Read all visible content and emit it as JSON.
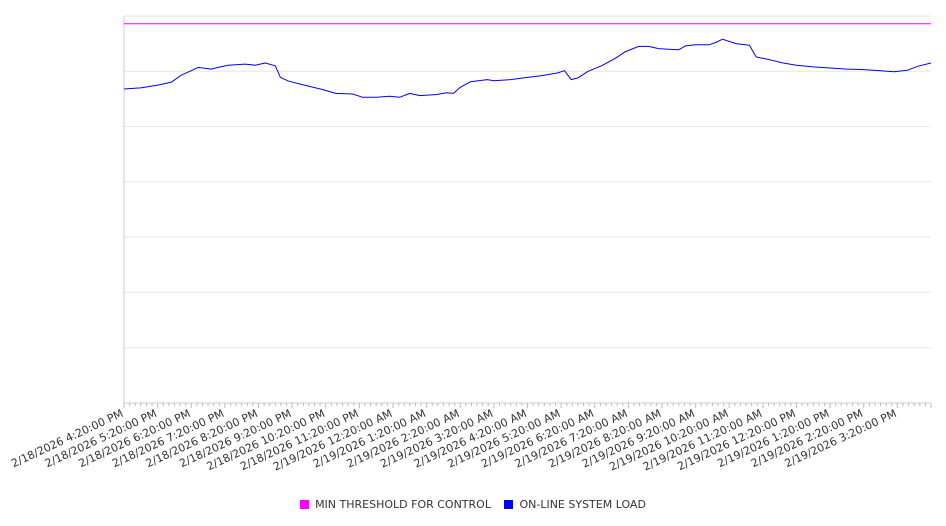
{
  "chart_data": {
    "type": "line",
    "title": "",
    "xlabel": "",
    "ylabel": "",
    "grid": true,
    "legend_position": "bottom-center",
    "ylim": [
      0,
      7
    ],
    "x_labels": [
      "2/18/2026 4:20:00 PM",
      "2/18/2026 5:20:00 PM",
      "2/18/2026 6:20:00 PM",
      "2/18/2026 7:20:00 PM",
      "2/18/2026 8:20:00 PM",
      "2/18/2026 9:20:00 PM",
      "2/18/2026 10:20:00 PM",
      "2/18/2026 11:20:00 PM",
      "2/19/2026 12:20:00 AM",
      "2/19/2026 1:20:00 AM",
      "2/19/2026 2:20:00 AM",
      "2/19/2026 3:20:00 AM",
      "2/19/2026 4:20:00 AM",
      "2/19/2026 5:20:00 AM",
      "2/19/2026 6:20:00 AM",
      "2/19/2026 7:20:00 AM",
      "2/19/2026 8:20:00 AM",
      "2/19/2026 9:20:00 AM",
      "2/19/2026 10:20:00 AM",
      "2/19/2026 11:20:00 AM",
      "2/19/2026 12:20:00 PM",
      "2/19/2026 1:20:00 PM",
      "2/19/2026 2:20:00 PM",
      "2/19/2026 3:20:00 PM"
    ],
    "x_hours": [
      0,
      24
    ],
    "series": [
      {
        "name": "MIN THRESHOLD FOR CONTROL",
        "color": "#ff00ff",
        "points": [
          [
            0,
            6.86
          ],
          [
            24,
            6.86
          ]
        ]
      },
      {
        "name": "ON-LINE SYSTEM LOAD",
        "color": "#0000ff",
        "points": [
          [
            0.0,
            5.68
          ],
          [
            0.5,
            5.7
          ],
          [
            1.0,
            5.75
          ],
          [
            1.4,
            5.8
          ],
          [
            1.7,
            5.93
          ],
          [
            2.0,
            6.01
          ],
          [
            2.2,
            6.07
          ],
          [
            2.6,
            6.04
          ],
          [
            2.8,
            6.07
          ],
          [
            3.1,
            6.11
          ],
          [
            3.6,
            6.13
          ],
          [
            3.9,
            6.11
          ],
          [
            4.2,
            6.15
          ],
          [
            4.5,
            6.1
          ],
          [
            4.65,
            5.89
          ],
          [
            4.9,
            5.82
          ],
          [
            5.3,
            5.76
          ],
          [
            5.9,
            5.67
          ],
          [
            6.3,
            5.6
          ],
          [
            6.8,
            5.59
          ],
          [
            7.1,
            5.53
          ],
          [
            7.5,
            5.53
          ],
          [
            7.9,
            5.55
          ],
          [
            8.2,
            5.53
          ],
          [
            8.5,
            5.6
          ],
          [
            8.8,
            5.56
          ],
          [
            9.3,
            5.58
          ],
          [
            9.6,
            5.61
          ],
          [
            9.8,
            5.6
          ],
          [
            10.0,
            5.71
          ],
          [
            10.3,
            5.81
          ],
          [
            10.8,
            5.85
          ],
          [
            11.0,
            5.83
          ],
          [
            11.5,
            5.85
          ],
          [
            12.0,
            5.89
          ],
          [
            12.4,
            5.92
          ],
          [
            12.9,
            5.97
          ],
          [
            13.1,
            6.01
          ],
          [
            13.3,
            5.85
          ],
          [
            13.5,
            5.88
          ],
          [
            13.8,
            6.0
          ],
          [
            14.2,
            6.1
          ],
          [
            14.6,
            6.23
          ],
          [
            14.9,
            6.35
          ],
          [
            15.3,
            6.45
          ],
          [
            15.6,
            6.45
          ],
          [
            15.9,
            6.41
          ],
          [
            16.2,
            6.4
          ],
          [
            16.5,
            6.39
          ],
          [
            16.7,
            6.46
          ],
          [
            17.0,
            6.48
          ],
          [
            17.4,
            6.48
          ],
          [
            17.6,
            6.52
          ],
          [
            17.8,
            6.58
          ],
          [
            18.2,
            6.5
          ],
          [
            18.6,
            6.47
          ],
          [
            18.8,
            6.26
          ],
          [
            19.2,
            6.21
          ],
          [
            19.6,
            6.15
          ],
          [
            20.0,
            6.11
          ],
          [
            20.5,
            6.08
          ],
          [
            21.0,
            6.06
          ],
          [
            21.5,
            6.04
          ],
          [
            22.0,
            6.03
          ],
          [
            22.5,
            6.01
          ],
          [
            22.9,
            5.99
          ],
          [
            23.3,
            6.02
          ],
          [
            23.6,
            6.09
          ],
          [
            24.0,
            6.15
          ]
        ]
      }
    ]
  }
}
